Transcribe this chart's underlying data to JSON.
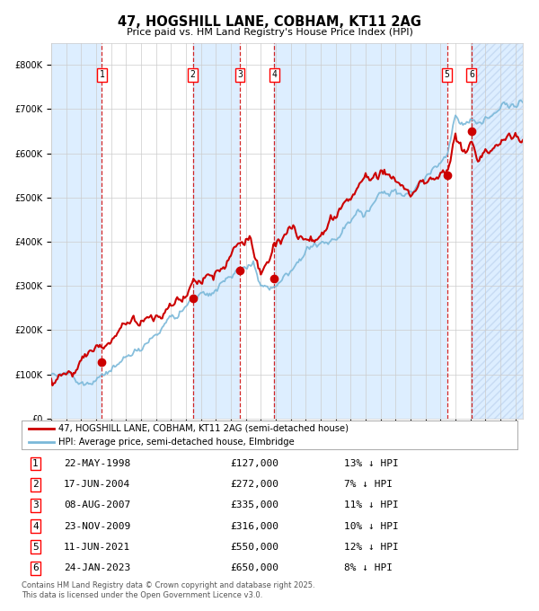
{
  "title": "47, HOGSHILL LANE, COBHAM, KT11 2AG",
  "subtitle": "Price paid vs. HM Land Registry's House Price Index (HPI)",
  "transactions": [
    {
      "num": 1,
      "date": "22-MAY-1998",
      "price": 127000,
      "year": 1998.38,
      "hpi_pct": "13% ↓ HPI"
    },
    {
      "num": 2,
      "date": "17-JUN-2004",
      "price": 272000,
      "year": 2004.46,
      "hpi_pct": "7% ↓ HPI"
    },
    {
      "num": 3,
      "date": "08-AUG-2007",
      "price": 335000,
      "year": 2007.6,
      "hpi_pct": "11% ↓ HPI"
    },
    {
      "num": 4,
      "date": "23-NOV-2009",
      "price": 316000,
      "year": 2009.89,
      "hpi_pct": "10% ↓ HPI"
    },
    {
      "num": 5,
      "date": "11-JUN-2021",
      "price": 550000,
      "year": 2021.44,
      "hpi_pct": "12% ↓ HPI"
    },
    {
      "num": 6,
      "date": "24-JAN-2023",
      "price": 650000,
      "year": 2023.07,
      "hpi_pct": "8% ↓ HPI"
    }
  ],
  "hpi_line_color": "#7ab8d9",
  "price_line_color": "#cc0000",
  "marker_color": "#cc0000",
  "dashed_line_color": "#cc0000",
  "background_color": "#ffffff",
  "band_color": "#ddeeff",
  "ylim": [
    0,
    850000
  ],
  "xlim_start": 1995.0,
  "xlim_end": 2026.5,
  "yticks": [
    0,
    100000,
    200000,
    300000,
    400000,
    500000,
    600000,
    700000,
    800000
  ],
  "ytick_labels": [
    "£0",
    "£100K",
    "£200K",
    "£300K",
    "£400K",
    "£500K",
    "£600K",
    "£700K",
    "£800K"
  ],
  "footer": "Contains HM Land Registry data © Crown copyright and database right 2025.\nThis data is licensed under the Open Government Licence v3.0.",
  "legend_entry1": "47, HOGSHILL LANE, COBHAM, KT11 2AG (semi-detached house)",
  "legend_entry2": "HPI: Average price, semi-detached house, Elmbridge"
}
